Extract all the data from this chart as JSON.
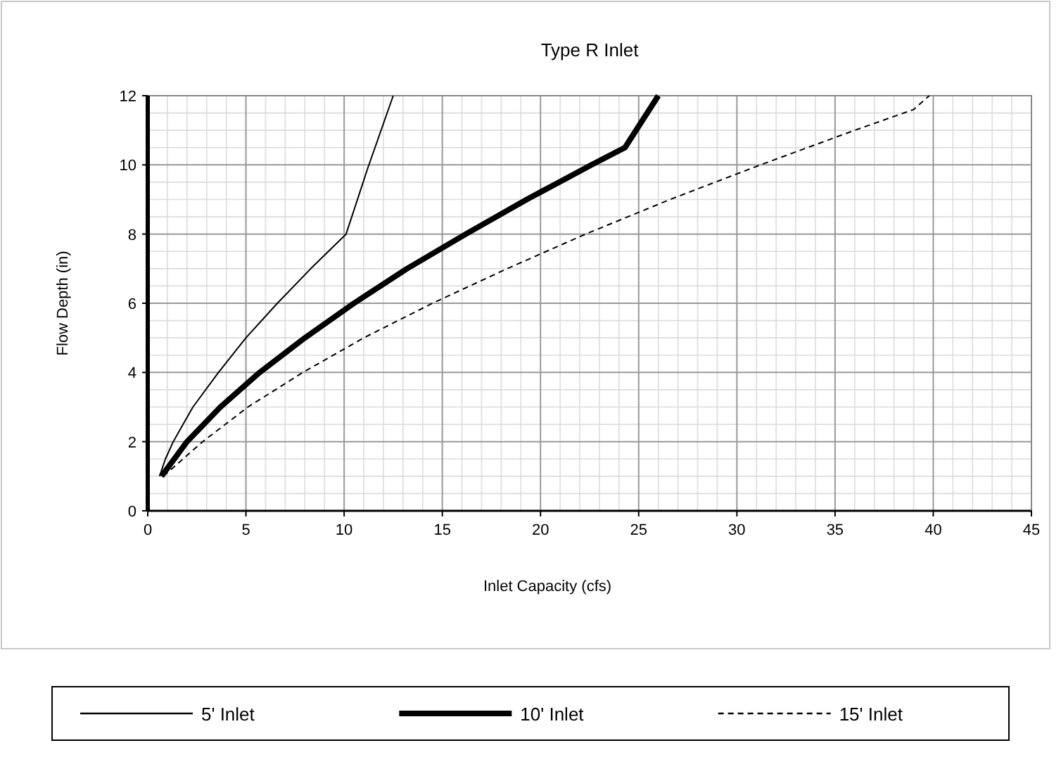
{
  "chart_data": {
    "type": "line",
    "title": "Type R Inlet",
    "xlabel": "Inlet Capacity (cfs)",
    "ylabel": "Flow Depth (in)",
    "xlim": [
      0,
      45
    ],
    "xticks": [
      0,
      5,
      10,
      15,
      20,
      25,
      30,
      35,
      40,
      45
    ],
    "ylim": [
      0,
      12
    ],
    "yticks": [
      0,
      2,
      4,
      6,
      8,
      10,
      12
    ],
    "grid": true,
    "legend": "bottom",
    "series": [
      {
        "name": "5' Inlet",
        "color": "#000000",
        "line_style": "solid",
        "x": [
          0.6,
          0.9,
          1.3,
          2.3,
          3.6,
          5.0,
          6.6,
          8.3,
          10.1,
          11.2,
          12.5
        ],
        "values": [
          1,
          1.5,
          2,
          3,
          4,
          5,
          6,
          7,
          8,
          9.9,
          12
        ]
      },
      {
        "name": "10' Inlet",
        "color": "#000000",
        "line_style": "solid",
        "x": [
          0.7,
          2.0,
          3.7,
          5.7,
          8.0,
          10.5,
          13.2,
          16.2,
          19.3,
          22.6,
          24.3,
          26.0
        ],
        "values": [
          1,
          2,
          3,
          4,
          5,
          6,
          7,
          8,
          9,
          10,
          10.5,
          12
        ]
      },
      {
        "name": "15' Inlet",
        "color": "#000000",
        "line_style": "dashed",
        "x": [
          0.8,
          2.8,
          5.1,
          7.9,
          11.0,
          14.5,
          18.3,
          22.3,
          26.6,
          31.2,
          36.0,
          39.0,
          39.8
        ],
        "values": [
          1,
          2,
          3,
          4,
          5,
          6,
          7,
          8,
          9,
          10,
          11,
          11.6,
          12
        ]
      }
    ]
  }
}
